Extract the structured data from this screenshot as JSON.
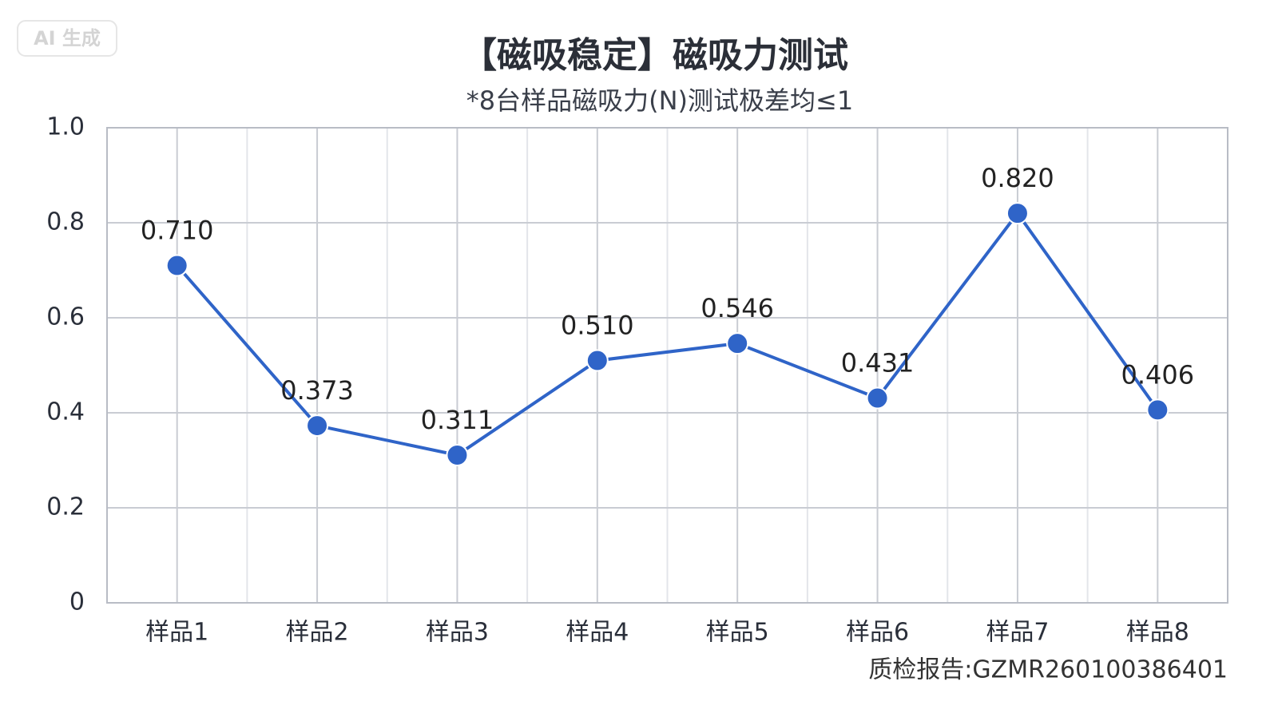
{
  "chart_data": {
    "type": "line",
    "watermark": "AI 生成",
    "title": "【磁吸稳定】磁吸力测试",
    "subtitle": "*8台样品磁吸力(N)测试极差均≤1",
    "categories": [
      "样品1",
      "样品2",
      "样品3",
      "样品4",
      "样品5",
      "样品6",
      "样品7",
      "样品8"
    ],
    "series": [
      {
        "name": "磁吸力",
        "color": "#2f64c8",
        "values": [
          0.71,
          0.373,
          0.311,
          0.51,
          0.546,
          0.431,
          0.82,
          0.406
        ],
        "value_labels": [
          "0.710",
          "0.373",
          "0.311",
          "0.510",
          "0.546",
          "0.431",
          "0.820",
          "0.406"
        ]
      }
    ],
    "ylim": [
      0,
      1
    ],
    "yticks": [
      0,
      0.2,
      0.4,
      0.6,
      0.8,
      {
        "value": 1,
        "label": "1.0"
      }
    ],
    "grid": true,
    "footer": "质检报告:GZMR260100386401"
  }
}
